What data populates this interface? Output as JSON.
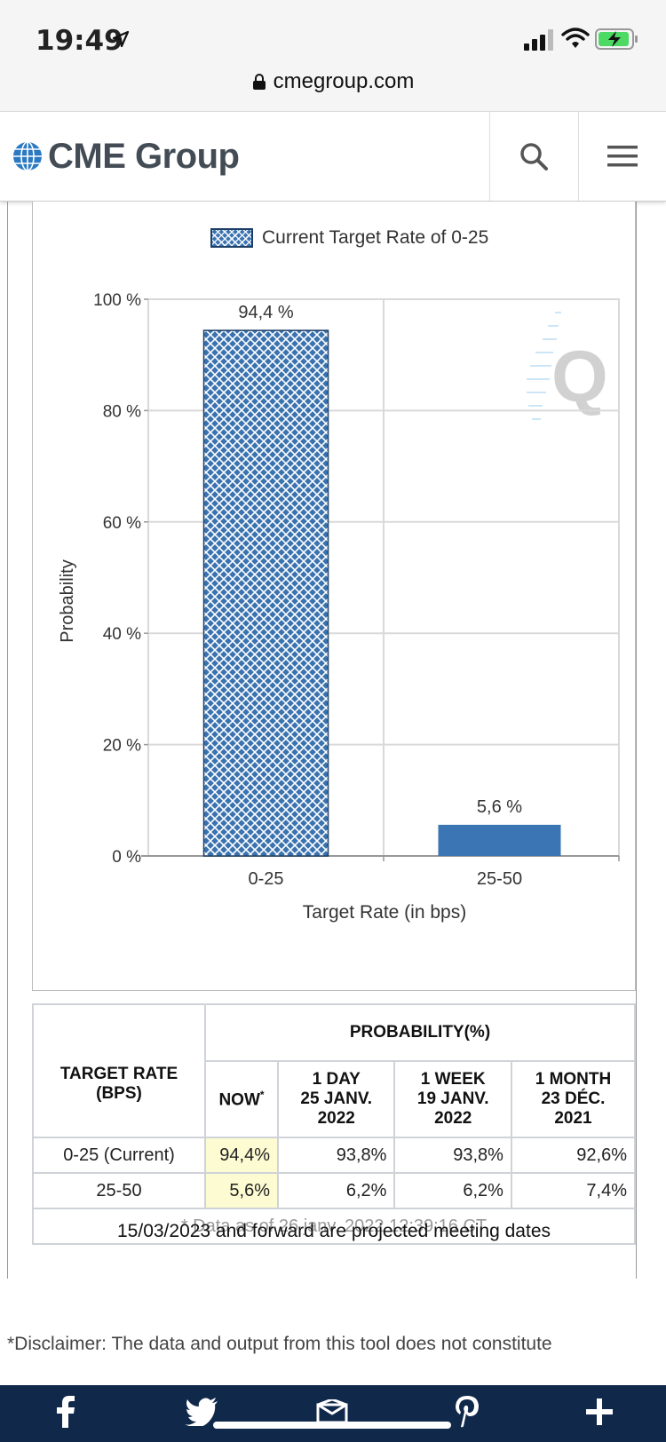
{
  "status_bar": {
    "time": "19:49"
  },
  "browser": {
    "url": "cmegroup.com"
  },
  "header": {
    "logo_text": "CME Group"
  },
  "chart_data": {
    "type": "bar",
    "legend": "Current Target Rate of 0-25",
    "categories": [
      "0-25",
      "25-50"
    ],
    "values": [
      94.4,
      5.6
    ],
    "value_labels": [
      "94,4 %",
      "5,6 %"
    ],
    "xlabel": "Target Rate (in bps)",
    "ylabel": "Probability",
    "ylim": [
      0,
      100
    ],
    "yticks": [
      "0 %",
      "20 %",
      "40 %",
      "60 %",
      "80 %",
      "100 %"
    ],
    "grid": true,
    "colors": {
      "current_bar": "#3a73b0",
      "other_bar": "#3b75b3",
      "hatch": "#ffffff"
    }
  },
  "table": {
    "target_header": "TARGET RATE (BPS)",
    "probability_header": "PROBABILITY(%)",
    "columns": [
      {
        "line1": "NOW",
        "asterisk": "*"
      },
      {
        "line1": "1 DAY",
        "line2": "25 JANV.",
        "line3": "2022"
      },
      {
        "line1": "1 WEEK",
        "line2": "19 JANV.",
        "line3": "2022"
      },
      {
        "line1": "1 MONTH",
        "line2": "23 DÉC.",
        "line3": "2021"
      }
    ],
    "rows": [
      {
        "label": "0-25 (Current)",
        "values": [
          "94,4%",
          "93,8%",
          "93,8%",
          "92,6%"
        ]
      },
      {
        "label": "25-50",
        "values": [
          "5,6%",
          "6,2%",
          "6,2%",
          "7,4%"
        ]
      }
    ],
    "note": "* Data as of 26 janv. 2022 12:39:16 CT"
  },
  "projected_note": "15/03/2023 and forward are projected meeting dates",
  "disclaimer": "*Disclaimer: The data and output from this tool does not constitute",
  "share_bar": {
    "icons": [
      "facebook-icon",
      "twitter-icon",
      "email-icon",
      "pinterest-icon",
      "plus-icon"
    ]
  }
}
